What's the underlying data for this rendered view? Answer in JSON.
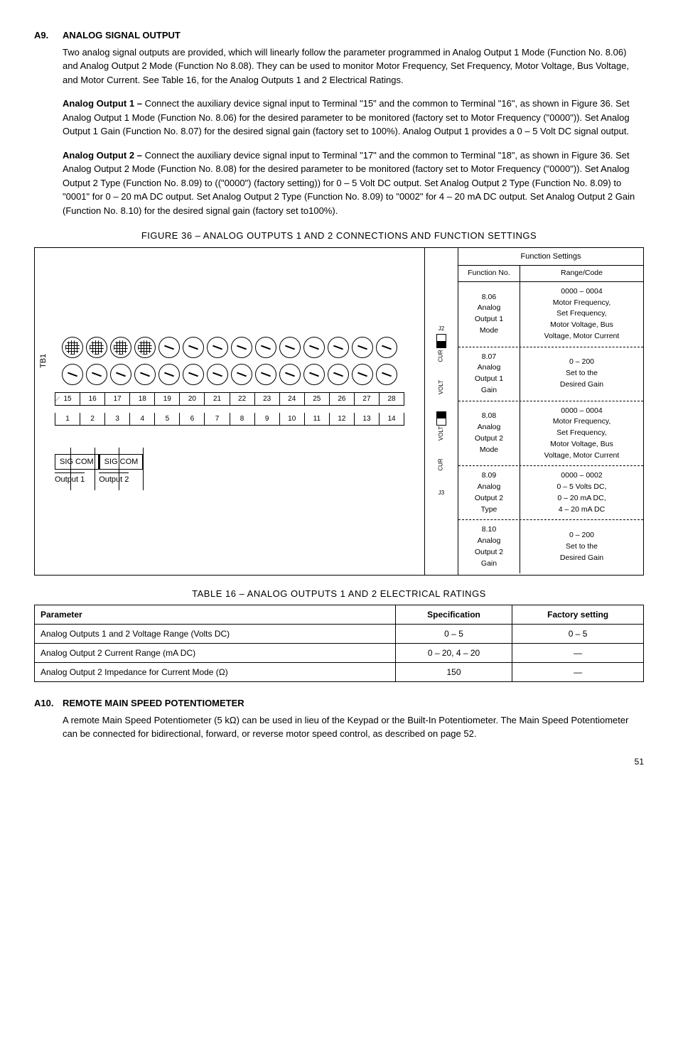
{
  "a9": {
    "num": "A9.",
    "title": "ANALOG SIGNAL OUTPUT",
    "p1": "Two analog signal outputs are provided, which will linearly follow the parameter programmed in Analog Output 1 Mode (Function No. 8.06) and Analog Output 2 Mode (Function No 8.08). They can be used to monitor Motor Frequency, Set Frequency, Motor Voltage, Bus Voltage, and Motor Current. See Table 16, for the Analog Outputs 1 and 2 Electrical Ratings.",
    "p2_lead": "Analog Output 1 – ",
    "p2": "Connect the auxiliary device signal input to Terminal \"15\" and the common to Terminal \"16\", as shown in Figure 36. Set Analog Output 1 Mode (Function No. 8.06) for the desired parameter to be monitored (factory set to Motor Frequency (\"0000\")). Set Analog Output 1 Gain (Function No. 8.07) for the desired signal gain (factory set to 100%). Analog Output 1 provides a 0 – 5 Volt DC signal output.",
    "p3_lead": "Analog Output 2 – ",
    "p3": "Connect the auxiliary device signal input to Terminal \"17\" and the common to Terminal \"18\", as shown in Figure 36. Set Analog Output 2 Mode (Function No. 8.08) for the desired parameter to be monitored (factory set to Motor Frequency (\"0000\")). Set Analog Output 2 Type (Function No. 8.09) to ((\"0000\") (factory setting)) for 0 – 5 Volt DC output. Set Analog Output 2 Type (Function No. 8.09) to \"0001\" for 0 – 20 mA DC output. Set Analog Output 2 Type (Function No. 8.09) to \"0002\" for 4 – 20 mA DC output. Set Analog Output 2 Gain (Function No. 8.10) for the desired signal gain (factory set to100%)."
  },
  "fig36": {
    "title": "FIGURE 36 – ANALOG OUTPUTS 1 AND 2 CONNECTIONS AND FUNCTION SETTINGS",
    "tb1_label": "TB1",
    "top_nums": [
      "15",
      "16",
      "17",
      "18",
      "19",
      "20",
      "21",
      "22",
      "23",
      "24",
      "25",
      "26",
      "27",
      "28"
    ],
    "bot_nums": [
      "1",
      "2",
      "3",
      "4",
      "5",
      "6",
      "7",
      "8",
      "9",
      "10",
      "11",
      "12",
      "13",
      "14"
    ],
    "sigcom1": "SIG  COM",
    "sigcom2": "SIG  COM",
    "out1": "Output 1",
    "out2": "Output 2",
    "jumpers": {
      "j2": "J2",
      "j3": "J3",
      "cur": "CUR",
      "volt": "VOLT"
    },
    "fs": {
      "head": "Function Settings",
      "c1h": "Function No.",
      "c2h": "Range/Code",
      "rows": [
        {
          "c1": "8.06\nAnalog\nOutput 1\nMode",
          "c2": "0000 – 0004\nMotor Frequency,\nSet Frequency,\nMotor Voltage, Bus\nVoltage, Motor Current"
        },
        {
          "c1": "8.07\nAnalog\nOutput 1\nGain",
          "c2": "0 – 200\nSet to the\nDesired Gain"
        },
        {
          "c1": "8.08\nAnalog\nOutput 2\nMode",
          "c2": "0000 – 0004\nMotor Frequency,\nSet Frequency,\nMotor Voltage, Bus\nVoltage, Motor Current"
        },
        {
          "c1": "8.09\nAnalog\nOutput 2\nType",
          "c2": "0000 – 0002\n0 – 5 Volts DC,\n0 – 20 mA DC,\n4 – 20 mA DC"
        },
        {
          "c1": "8.10\nAnalog\nOutput 2\nGain",
          "c2": "0 – 200\nSet to the\nDesired Gain"
        }
      ]
    }
  },
  "tbl16": {
    "title": "TABLE 16 –  ANALOG OUTPUTS 1 AND 2 ELECTRICAL RATINGS",
    "h1": "Parameter",
    "h2": "Specification",
    "h3": "Factory setting",
    "rows": [
      {
        "p": "Analog Outputs 1 and 2 Voltage Range (Volts DC)",
        "s": "0 – 5",
        "f": "0 – 5"
      },
      {
        "p": "Analog Output 2 Current Range (mA DC)",
        "s": "0 – 20, 4 – 20",
        "f": "—"
      },
      {
        "p": "Analog Output 2 Impedance for Current Mode (Ω)",
        "s": "150",
        "f": "—"
      }
    ]
  },
  "a10": {
    "num": "A10.",
    "title": "REMOTE MAIN SPEED POTENTIOMETER",
    "p1": "A remote Main Speed Potentiometer (5 kΩ) can be used in lieu of the Keypad or the Built-In Potentiometer. The Main Speed Potentiometer can be connected for bidirectional, forward, or reverse motor speed control, as described on page 52."
  },
  "page": "51"
}
